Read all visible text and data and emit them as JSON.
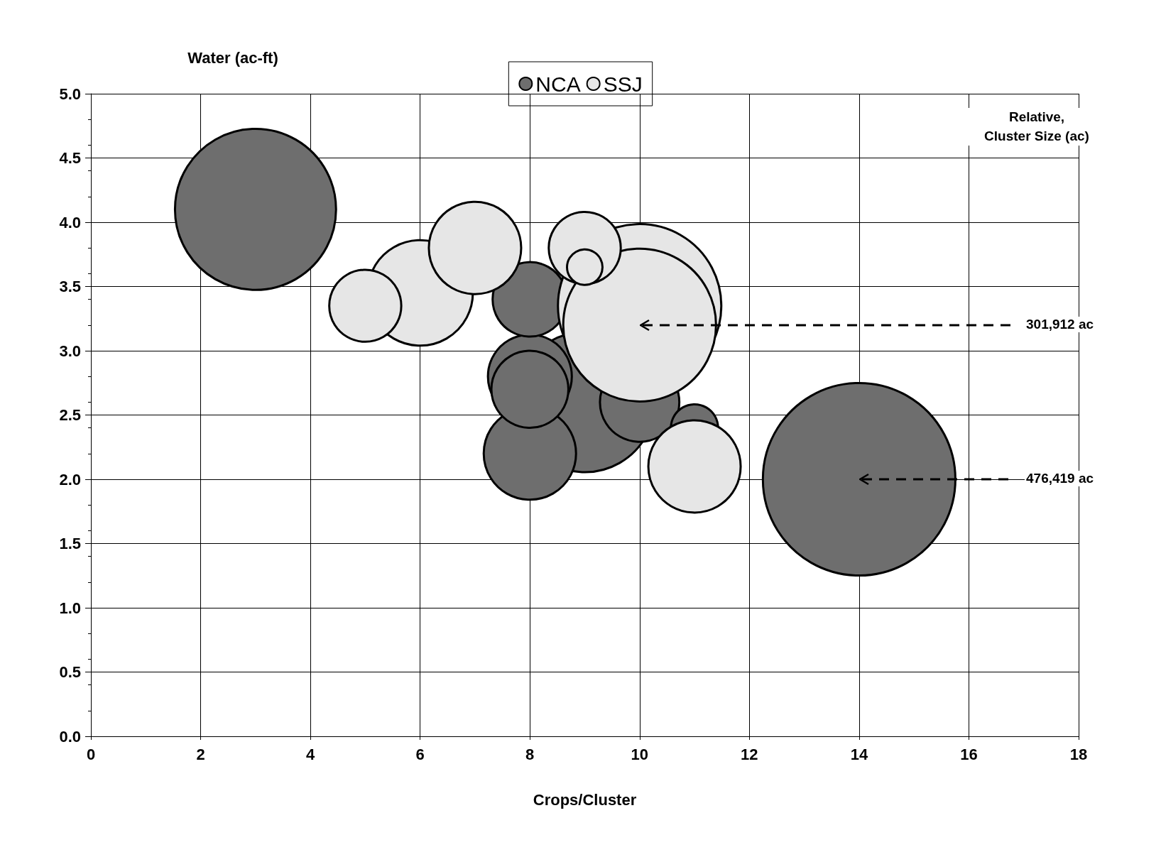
{
  "chart_data": {
    "type": "bubble",
    "xlabel": "Crops/Cluster",
    "ylabel": "Water (ac-ft)",
    "xlim": [
      0,
      18
    ],
    "xticks": [
      0,
      2,
      4,
      6,
      8,
      10,
      12,
      14,
      16,
      18
    ],
    "ylim": [
      0,
      5
    ],
    "yticks": [
      {
        "value": 0,
        "label": "0.0"
      },
      {
        "value": 0.5,
        "label": "0.5"
      },
      {
        "value": 1,
        "label": "1.0"
      },
      {
        "value": 1.5,
        "label": "1.5"
      },
      {
        "value": 2,
        "label": "2.0"
      },
      {
        "value": 2.5,
        "label": "2.5"
      },
      {
        "value": 3,
        "label": "3.0"
      },
      {
        "value": 3.5,
        "label": "3.5"
      },
      {
        "value": 4,
        "label": "4.0"
      },
      {
        "value": 4.5,
        "label": "4.5"
      },
      {
        "value": 5,
        "label": "5.0"
      }
    ],
    "grid": true,
    "legend": "top",
    "marker": "circle",
    "series": [
      {
        "name": "NCA",
        "color": "#6e6e6e",
        "x": [
          14,
          3,
          9,
          8,
          8,
          8,
          10,
          8,
          11
        ],
        "values": [
          2.0,
          4.1,
          2.6,
          2.2,
          2.8,
          2.7,
          2.6,
          3.4,
          2.4
        ],
        "sizes": [
          1,
          0.7,
          0.53,
          0.23,
          0.19,
          0.16,
          0.17,
          0.15,
          0.06
        ]
      },
      {
        "name": "SSJ",
        "color": "#e6e6e6",
        "x": [
          10,
          10,
          6,
          7,
          11,
          5,
          9,
          9
        ],
        "values": [
          3.35,
          3.2,
          3.45,
          3.8,
          2.1,
          3.35,
          3.8,
          3.65
        ],
        "sizes": [
          0.72,
          0.63,
          0.3,
          0.23,
          0.23,
          0.14,
          0.14,
          0.034
        ]
      }
    ],
    "annotations": [
      "Relative,\nCluster Size (ac)",
      {
        "text": "301,912 ac",
        "x": 10,
        "y": 3.2
      },
      {
        "text": "476,419 ac",
        "x": 14,
        "y": 2.0
      }
    ]
  }
}
